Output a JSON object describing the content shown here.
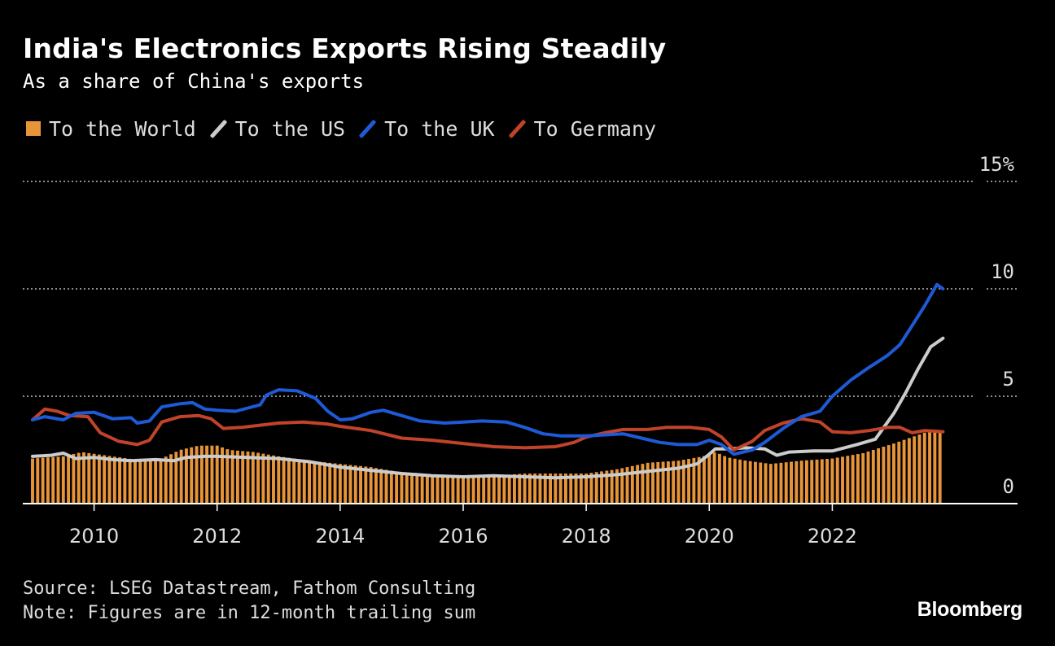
{
  "header": {
    "title": "India's Electronics Exports Rising Steadily",
    "subtitle": "As a share of China's exports"
  },
  "footer": {
    "source": "Source: LSEG Datastream, Fathom Consulting",
    "note": "Note: Figures are in 12-month trailing sum",
    "brand": "Bloomberg"
  },
  "colors": {
    "background": "#000000",
    "world": "#e8953a",
    "us": "#cccccc",
    "uk": "#1e5ad6",
    "germany": "#c0432a",
    "grid": "#bbbbbb"
  },
  "chart_data": {
    "type": "bar+line",
    "title": "India's Electronics Exports Rising Steadily",
    "subtitle": "As a share of China's exports",
    "xlabel": "",
    "ylabel": "",
    "xlim": [
      2009.0,
      2023.9
    ],
    "ylim": [
      0,
      15
    ],
    "y_ticks": [
      0,
      5,
      10,
      15
    ],
    "y_tick_labels": [
      "0",
      "5",
      "10",
      "15%"
    ],
    "x_ticks": [
      2010,
      2012,
      2014,
      2016,
      2018,
      2020,
      2022
    ],
    "x_tick_labels": [
      "2010",
      "2012",
      "2014",
      "2016",
      "2018",
      "2020",
      "2022"
    ],
    "grid": "horizontal dotted",
    "legend": "top-left",
    "series": [
      {
        "name": "To the World",
        "kind": "bar",
        "color": "#e8953a",
        "points": [
          [
            2009.0,
            2.1
          ],
          [
            2009.5,
            2.2
          ],
          [
            2009.8,
            2.4
          ],
          [
            2010.3,
            2.2
          ],
          [
            2010.8,
            2.0
          ],
          [
            2011.1,
            2.1
          ],
          [
            2011.4,
            2.5
          ],
          [
            2011.7,
            2.7
          ],
          [
            2012.0,
            2.7
          ],
          [
            2012.2,
            2.5
          ],
          [
            2012.6,
            2.4
          ],
          [
            2013.0,
            2.2
          ],
          [
            2013.5,
            2.0
          ],
          [
            2014.0,
            1.85
          ],
          [
            2014.5,
            1.7
          ],
          [
            2015.0,
            1.45
          ],
          [
            2015.5,
            1.3
          ],
          [
            2016.0,
            1.25
          ],
          [
            2016.5,
            1.3
          ],
          [
            2017.0,
            1.4
          ],
          [
            2017.5,
            1.4
          ],
          [
            2018.0,
            1.4
          ],
          [
            2018.5,
            1.6
          ],
          [
            2019.0,
            1.9
          ],
          [
            2019.5,
            2.0
          ],
          [
            2019.9,
            2.2
          ],
          [
            2020.1,
            2.4
          ],
          [
            2020.3,
            2.15
          ],
          [
            2020.6,
            2.0
          ],
          [
            2021.0,
            1.85
          ],
          [
            2021.5,
            2.0
          ],
          [
            2022.0,
            2.1
          ],
          [
            2022.5,
            2.35
          ],
          [
            2023.0,
            2.8
          ],
          [
            2023.4,
            3.2
          ],
          [
            2023.6,
            3.4
          ],
          [
            2023.8,
            3.4
          ]
        ]
      },
      {
        "name": "To the US",
        "kind": "line",
        "color": "#cccccc",
        "points": [
          [
            2009.0,
            2.2
          ],
          [
            2009.3,
            2.25
          ],
          [
            2009.5,
            2.35
          ],
          [
            2009.7,
            2.1
          ],
          [
            2010.0,
            2.15
          ],
          [
            2010.3,
            2.05
          ],
          [
            2010.6,
            2.0
          ],
          [
            2011.0,
            2.05
          ],
          [
            2011.3,
            2.0
          ],
          [
            2011.5,
            2.15
          ],
          [
            2011.8,
            2.2
          ],
          [
            2012.0,
            2.2
          ],
          [
            2012.5,
            2.15
          ],
          [
            2013.0,
            2.1
          ],
          [
            2013.5,
            1.95
          ],
          [
            2014.0,
            1.7
          ],
          [
            2014.5,
            1.55
          ],
          [
            2015.0,
            1.4
          ],
          [
            2015.5,
            1.3
          ],
          [
            2016.0,
            1.25
          ],
          [
            2016.5,
            1.3
          ],
          [
            2017.0,
            1.25
          ],
          [
            2017.5,
            1.2
          ],
          [
            2018.0,
            1.25
          ],
          [
            2018.5,
            1.35
          ],
          [
            2019.0,
            1.5
          ],
          [
            2019.5,
            1.65
          ],
          [
            2019.8,
            1.85
          ],
          [
            2020.0,
            2.3
          ],
          [
            2020.1,
            2.55
          ],
          [
            2020.3,
            2.55
          ],
          [
            2020.6,
            2.6
          ],
          [
            2020.9,
            2.55
          ],
          [
            2021.1,
            2.25
          ],
          [
            2021.3,
            2.4
          ],
          [
            2021.7,
            2.45
          ],
          [
            2022.0,
            2.45
          ],
          [
            2022.4,
            2.75
          ],
          [
            2022.7,
            3.0
          ],
          [
            2023.0,
            4.2
          ],
          [
            2023.2,
            5.2
          ],
          [
            2023.4,
            6.3
          ],
          [
            2023.6,
            7.3
          ],
          [
            2023.8,
            7.7
          ]
        ]
      },
      {
        "name": "To the UK",
        "kind": "line",
        "color": "#1e5ad6",
        "points": [
          [
            2009.0,
            3.9
          ],
          [
            2009.2,
            4.05
          ],
          [
            2009.5,
            3.9
          ],
          [
            2009.7,
            4.2
          ],
          [
            2010.0,
            4.25
          ],
          [
            2010.3,
            3.95
          ],
          [
            2010.6,
            4.0
          ],
          [
            2010.7,
            3.75
          ],
          [
            2010.9,
            3.85
          ],
          [
            2011.1,
            4.5
          ],
          [
            2011.4,
            4.65
          ],
          [
            2011.6,
            4.7
          ],
          [
            2011.8,
            4.4
          ],
          [
            2012.0,
            4.35
          ],
          [
            2012.3,
            4.3
          ],
          [
            2012.5,
            4.45
          ],
          [
            2012.7,
            4.6
          ],
          [
            2012.8,
            5.05
          ],
          [
            2013.0,
            5.3
          ],
          [
            2013.3,
            5.25
          ],
          [
            2013.6,
            4.9
          ],
          [
            2013.8,
            4.3
          ],
          [
            2014.0,
            3.9
          ],
          [
            2014.2,
            3.95
          ],
          [
            2014.5,
            4.25
          ],
          [
            2014.7,
            4.35
          ],
          [
            2015.0,
            4.1
          ],
          [
            2015.3,
            3.85
          ],
          [
            2015.7,
            3.75
          ],
          [
            2016.0,
            3.8
          ],
          [
            2016.3,
            3.85
          ],
          [
            2016.7,
            3.8
          ],
          [
            2017.0,
            3.55
          ],
          [
            2017.3,
            3.25
          ],
          [
            2017.6,
            3.15
          ],
          [
            2018.0,
            3.15
          ],
          [
            2018.3,
            3.2
          ],
          [
            2018.6,
            3.25
          ],
          [
            2018.9,
            3.05
          ],
          [
            2019.2,
            2.85
          ],
          [
            2019.5,
            2.75
          ],
          [
            2019.8,
            2.75
          ],
          [
            2020.0,
            2.95
          ],
          [
            2020.2,
            2.75
          ],
          [
            2020.4,
            2.3
          ],
          [
            2020.7,
            2.5
          ],
          [
            2020.9,
            2.85
          ],
          [
            2021.2,
            3.5
          ],
          [
            2021.5,
            4.05
          ],
          [
            2021.8,
            4.3
          ],
          [
            2022.0,
            5.0
          ],
          [
            2022.3,
            5.75
          ],
          [
            2022.6,
            6.35
          ],
          [
            2022.9,
            6.9
          ],
          [
            2023.1,
            7.4
          ],
          [
            2023.3,
            8.3
          ],
          [
            2023.5,
            9.2
          ],
          [
            2023.7,
            10.2
          ],
          [
            2023.8,
            10.0
          ]
        ]
      },
      {
        "name": "To Germany",
        "kind": "line",
        "color": "#c0432a",
        "points": [
          [
            2009.0,
            3.9
          ],
          [
            2009.2,
            4.4
          ],
          [
            2009.4,
            4.3
          ],
          [
            2009.6,
            4.1
          ],
          [
            2009.9,
            4.05
          ],
          [
            2010.1,
            3.3
          ],
          [
            2010.4,
            2.9
          ],
          [
            2010.7,
            2.75
          ],
          [
            2010.9,
            2.95
          ],
          [
            2011.1,
            3.8
          ],
          [
            2011.4,
            4.05
          ],
          [
            2011.7,
            4.1
          ],
          [
            2011.9,
            3.95
          ],
          [
            2012.1,
            3.5
          ],
          [
            2012.4,
            3.55
          ],
          [
            2012.7,
            3.65
          ],
          [
            2013.0,
            3.75
          ],
          [
            2013.4,
            3.8
          ],
          [
            2013.8,
            3.7
          ],
          [
            2014.0,
            3.6
          ],
          [
            2014.5,
            3.4
          ],
          [
            2015.0,
            3.05
          ],
          [
            2015.5,
            2.95
          ],
          [
            2016.0,
            2.8
          ],
          [
            2016.5,
            2.65
          ],
          [
            2017.0,
            2.6
          ],
          [
            2017.5,
            2.65
          ],
          [
            2017.8,
            2.85
          ],
          [
            2018.0,
            3.1
          ],
          [
            2018.3,
            3.3
          ],
          [
            2018.6,
            3.45
          ],
          [
            2019.0,
            3.45
          ],
          [
            2019.3,
            3.55
          ],
          [
            2019.7,
            3.55
          ],
          [
            2020.0,
            3.45
          ],
          [
            2020.2,
            3.1
          ],
          [
            2020.4,
            2.5
          ],
          [
            2020.7,
            2.9
          ],
          [
            2020.9,
            3.4
          ],
          [
            2021.2,
            3.75
          ],
          [
            2021.5,
            3.95
          ],
          [
            2021.8,
            3.8
          ],
          [
            2022.0,
            3.35
          ],
          [
            2022.3,
            3.3
          ],
          [
            2022.6,
            3.4
          ],
          [
            2022.9,
            3.55
          ],
          [
            2023.1,
            3.55
          ],
          [
            2023.3,
            3.3
          ],
          [
            2023.5,
            3.4
          ],
          [
            2023.8,
            3.35
          ]
        ]
      }
    ]
  }
}
